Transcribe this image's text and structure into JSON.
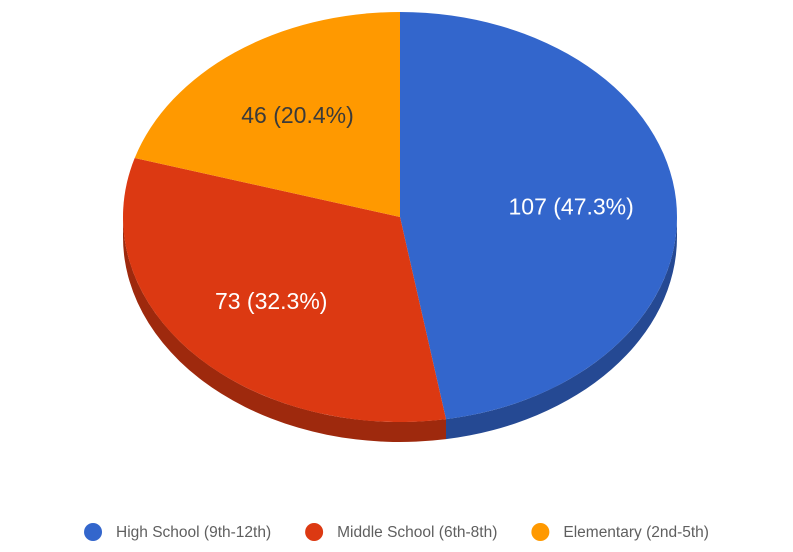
{
  "chart_data": {
    "type": "pie",
    "title": "",
    "style": "3d",
    "legend_position": "bottom",
    "slices": [
      {
        "label": "High School (9th-12th)",
        "value": 107,
        "percent": 47.3,
        "data_label": "107 (47.3%)",
        "color": "#3366cc",
        "label_color": "#ffffff"
      },
      {
        "label": "Middle School (6th-8th)",
        "value": 73,
        "percent": 32.3,
        "data_label": "73 (32.3%)",
        "color": "#dc3912",
        "label_color": "#ffffff"
      },
      {
        "label": "Elementary (2nd-5th)",
        "value": 46,
        "percent": 20.4,
        "data_label": "46 (20.4%)",
        "color": "#ff9900",
        "label_color": "#3a3a3a"
      }
    ]
  }
}
